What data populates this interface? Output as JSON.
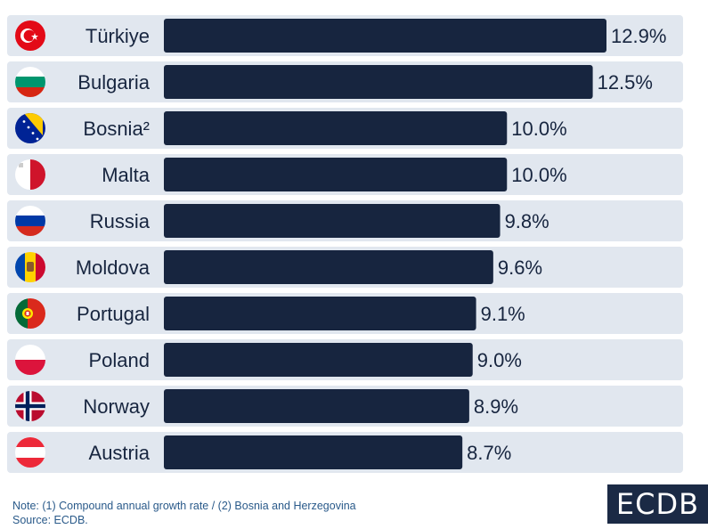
{
  "chart_data": {
    "type": "bar",
    "orientation": "horizontal",
    "categories": [
      "Türkiye",
      "Bulgaria",
      "Bosnia²",
      "Malta",
      "Russia",
      "Moldova",
      "Portugal",
      "Poland",
      "Norway",
      "Austria"
    ],
    "values": [
      12.9,
      12.5,
      10.0,
      10.0,
      9.8,
      9.6,
      9.1,
      9.0,
      8.9,
      8.7
    ],
    "value_labels": [
      "12.9%",
      "12.5%",
      "10.0%",
      "10.0%",
      "9.8%",
      "9.6%",
      "9.1%",
      "9.0%",
      "8.9%",
      "8.7%"
    ],
    "flags": [
      "turkey-flag",
      "bulgaria-flag",
      "bosnia-flag",
      "malta-flag",
      "russia-flag",
      "moldova-flag",
      "portugal-flag",
      "poland-flag",
      "norway-flag",
      "austria-flag"
    ],
    "xlim": [
      0,
      12.9
    ],
    "grid": false,
    "bar_color": "#17253f",
    "row_color": "#e1e7ef"
  },
  "footer": {
    "note": "Note: (1) Compound annual growth rate / (2) Bosnia and Herzegovina",
    "source": "Source: ECDB."
  },
  "logo": {
    "text": "ECDB"
  }
}
